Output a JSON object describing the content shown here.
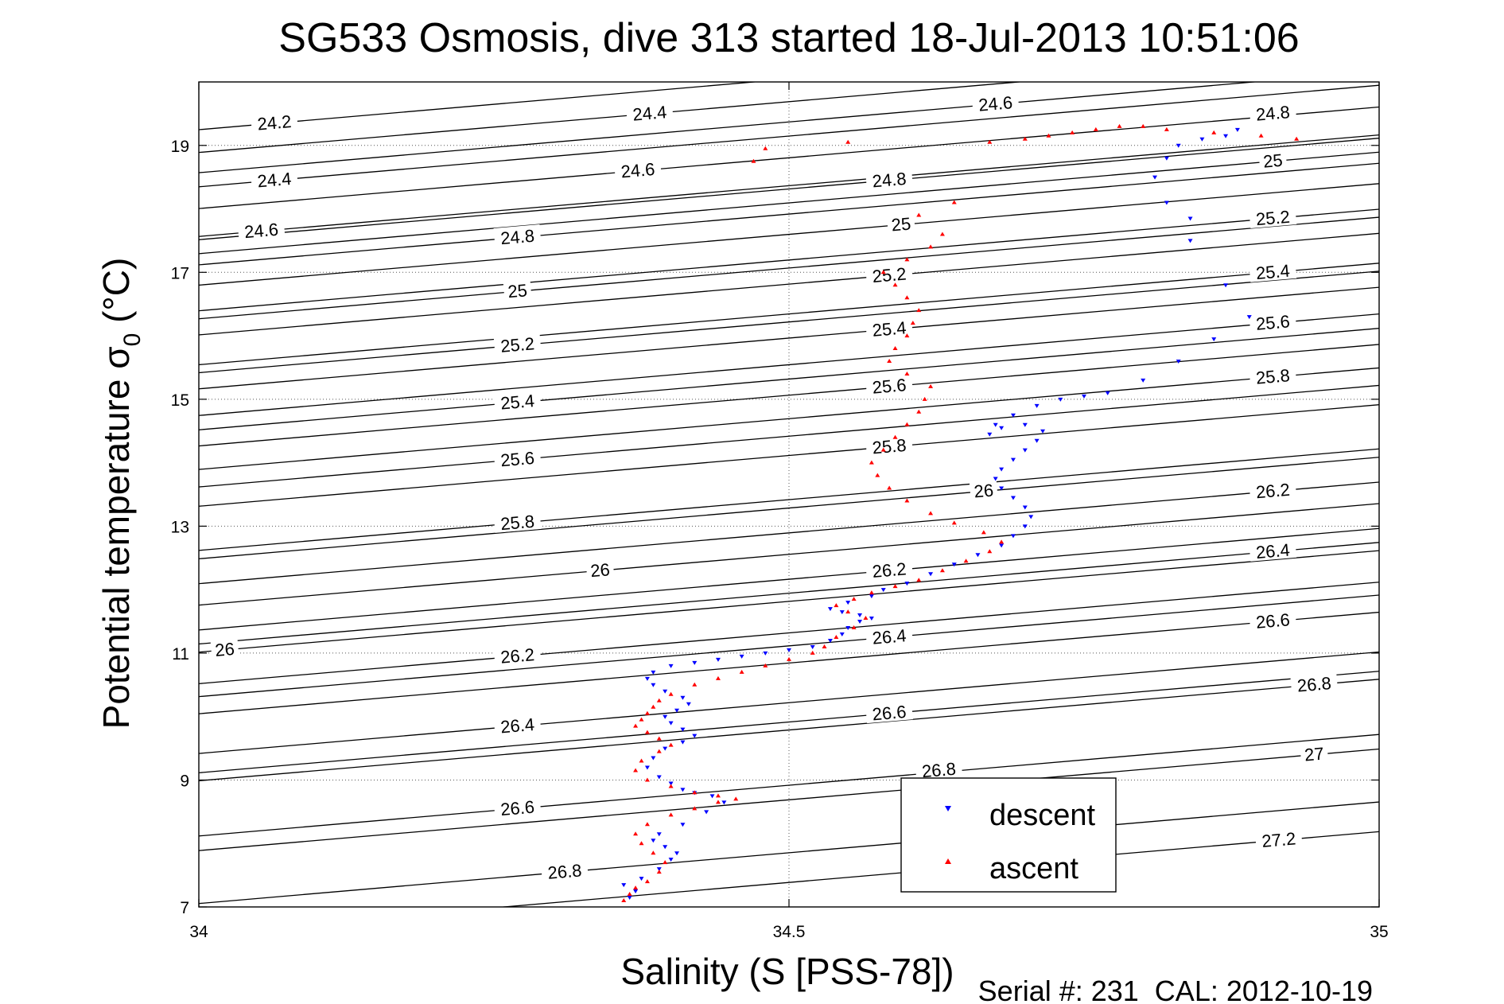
{
  "chart_data": {
    "type": "scatter",
    "title": "SG533 Osmosis, dive 313 started 18-Jul-2013 10:51:06",
    "xlabel": "Salinity (S [PSS-78])",
    "ylabel": "Potential temperature σ₀ (°C)",
    "xlim": [
      34,
      35
    ],
    "ylim": [
      7,
      20
    ],
    "xticks": [
      34,
      34.5,
      35
    ],
    "xtick_labels": [
      "34",
      "34.5",
      "35"
    ],
    "yticks": [
      7,
      9,
      11,
      13,
      15,
      17,
      19
    ],
    "ytick_labels": [
      "7",
      "9",
      "11",
      "13",
      "15",
      "17",
      "19"
    ],
    "grid": true,
    "legend_position": "lower-right",
    "footer": "Serial #: 231  CAL: 2012-10-19",
    "colors": {
      "descent": "#0000ff",
      "ascent": "#ff0000",
      "contour": "#000000"
    },
    "density_contours": {
      "levels": [
        24.2,
        24.4,
        24.6,
        24.8,
        25,
        25.2,
        25.4,
        25.6,
        25.8,
        26,
        26.2,
        26.4,
        26.6,
        26.8,
        27,
        27.2
      ],
      "labels": [
        {
          "text": "24.2",
          "s": 34.064,
          "t": 19.35
        },
        {
          "text": "24.4",
          "s": 34.064,
          "t": 18.45
        },
        {
          "text": "24.6",
          "s": 34.053,
          "t": 17.65
        },
        {
          "text": "24.4",
          "s": 34.382,
          "t": 19.5
        },
        {
          "text": "24.6",
          "s": 34.372,
          "t": 18.6
        },
        {
          "text": "24.8",
          "s": 34.27,
          "t": 17.55
        },
        {
          "text": "25",
          "s": 34.27,
          "t": 16.7
        },
        {
          "text": "25.2",
          "s": 34.27,
          "t": 15.85
        },
        {
          "text": "25.4",
          "s": 34.27,
          "t": 14.95
        },
        {
          "text": "25.6",
          "s": 34.27,
          "t": 14.05
        },
        {
          "text": "25.8",
          "s": 34.27,
          "t": 13.05
        },
        {
          "text": "26",
          "s": 34.34,
          "t": 12.3
        },
        {
          "text": "26",
          "s": 34.022,
          "t": 11.05
        },
        {
          "text": "26.2",
          "s": 34.27,
          "t": 10.95
        },
        {
          "text": "26.4",
          "s": 34.27,
          "t": 9.85
        },
        {
          "text": "26.6",
          "s": 34.27,
          "t": 8.55
        },
        {
          "text": "26.8",
          "s": 34.31,
          "t": 7.55
        },
        {
          "text": "24.6",
          "s": 34.675,
          "t": 19.65
        },
        {
          "text": "24.8",
          "s": 34.585,
          "t": 18.45
        },
        {
          "text": "25",
          "s": 34.595,
          "t": 17.75
        },
        {
          "text": "25.2",
          "s": 34.585,
          "t": 16.95
        },
        {
          "text": "25.4",
          "s": 34.585,
          "t": 16.1
        },
        {
          "text": "25.6",
          "s": 34.585,
          "t": 15.2
        },
        {
          "text": "25.8",
          "s": 34.585,
          "t": 14.25
        },
        {
          "text": "26",
          "s": 34.665,
          "t": 13.55
        },
        {
          "text": "26.2",
          "s": 34.585,
          "t": 12.3
        },
        {
          "text": "26.4",
          "s": 34.585,
          "t": 11.25
        },
        {
          "text": "26.6",
          "s": 34.585,
          "t": 10.05
        },
        {
          "text": "26.8",
          "s": 34.627,
          "t": 9.15
        },
        {
          "text": "24.8",
          "s": 34.91,
          "t": 19.5
        },
        {
          "text": "25",
          "s": 34.91,
          "t": 18.75
        },
        {
          "text": "25.2",
          "s": 34.91,
          "t": 17.85
        },
        {
          "text": "25.4",
          "s": 34.91,
          "t": 17.0
        },
        {
          "text": "25.6",
          "s": 34.91,
          "t": 16.2
        },
        {
          "text": "25.8",
          "s": 34.91,
          "t": 15.35
        },
        {
          "text": "26.2",
          "s": 34.91,
          "t": 13.55
        },
        {
          "text": "26.4",
          "s": 34.91,
          "t": 12.6
        },
        {
          "text": "26.6",
          "s": 34.91,
          "t": 11.5
        },
        {
          "text": "26.8",
          "s": 34.945,
          "t": 10.5
        },
        {
          "text": "27",
          "s": 34.945,
          "t": 9.4
        },
        {
          "text": "27.2",
          "s": 34.915,
          "t": 8.05
        }
      ]
    },
    "series": [
      {
        "name": "descent",
        "marker": "down-triangle",
        "color": "#0000ff",
        "x": [
          34.365,
          34.37,
          34.36,
          34.375,
          34.39,
          34.4,
          34.405,
          34.395,
          34.385,
          34.39,
          34.41,
          34.43,
          34.445,
          34.435,
          34.42,
          34.41,
          34.4,
          34.39,
          34.38,
          34.385,
          34.395,
          34.41,
          34.42,
          34.41,
          34.4,
          34.395,
          34.405,
          34.415,
          34.41,
          34.395,
          34.385,
          34.38,
          34.385,
          34.4,
          34.42,
          34.44,
          34.46,
          34.48,
          34.5,
          34.52,
          34.535,
          34.545,
          34.55,
          34.56,
          34.57,
          34.56,
          34.545,
          34.535,
          34.55,
          34.57,
          34.58,
          34.6,
          34.62,
          34.64,
          34.66,
          34.68,
          34.69,
          34.7,
          34.705,
          34.7,
          34.69,
          34.68,
          34.675,
          34.68,
          34.69,
          34.7,
          34.71,
          34.715,
          34.7,
          34.68,
          34.67,
          34.675,
          34.69,
          34.71,
          34.73,
          34.75,
          34.77,
          34.8,
          34.83,
          34.86,
          34.89,
          34.87,
          34.84,
          34.82,
          34.81,
          34.82,
          34.83,
          34.85,
          34.87,
          34.88,
          34.84
        ],
        "y": [
          7.15,
          7.25,
          7.35,
          7.45,
          7.6,
          7.75,
          7.85,
          7.95,
          8.05,
          8.15,
          8.3,
          8.5,
          8.65,
          8.75,
          8.8,
          8.85,
          8.95,
          9.05,
          9.2,
          9.35,
          9.5,
          9.6,
          9.7,
          9.8,
          9.9,
          10.0,
          10.1,
          10.2,
          10.3,
          10.4,
          10.5,
          10.6,
          10.7,
          10.8,
          10.85,
          10.9,
          10.95,
          11.0,
          11.05,
          11.1,
          11.2,
          11.3,
          11.4,
          11.5,
          11.55,
          11.6,
          11.65,
          11.7,
          11.8,
          11.9,
          12.0,
          12.1,
          12.25,
          12.4,
          12.55,
          12.7,
          12.85,
          13.0,
          13.15,
          13.3,
          13.45,
          13.6,
          13.75,
          13.9,
          14.05,
          14.2,
          14.35,
          14.5,
          14.6,
          14.55,
          14.45,
          14.6,
          14.75,
          14.9,
          15.0,
          15.05,
          15.1,
          15.3,
          15.6,
          15.95,
          16.3,
          16.8,
          17.5,
          18.1,
          18.5,
          18.8,
          19.0,
          19.1,
          19.15,
          19.25,
          17.85
        ]
      },
      {
        "name": "ascent",
        "marker": "up-triangle",
        "color": "#ff0000",
        "x": [
          34.36,
          34.365,
          34.37,
          34.38,
          34.39,
          34.395,
          34.385,
          34.375,
          34.37,
          34.38,
          34.4,
          34.42,
          34.44,
          34.455,
          34.44,
          34.42,
          34.4,
          34.38,
          34.37,
          34.375,
          34.39,
          34.4,
          34.39,
          34.38,
          34.37,
          34.375,
          34.38,
          34.385,
          34.39,
          34.4,
          34.42,
          34.44,
          34.46,
          34.48,
          34.5,
          34.52,
          34.53,
          34.54,
          34.555,
          34.565,
          34.55,
          34.54,
          34.555,
          34.57,
          34.59,
          34.61,
          34.63,
          34.65,
          34.67,
          34.68,
          34.665,
          34.64,
          34.62,
          34.6,
          34.585,
          34.575,
          34.57,
          34.58,
          34.59,
          34.6,
          34.61,
          34.615,
          34.62,
          34.6,
          34.585,
          34.59,
          34.6,
          34.605,
          34.61,
          34.6,
          34.59,
          34.58,
          34.6,
          34.62,
          34.63,
          34.61,
          34.64,
          34.67,
          34.7,
          34.72,
          34.74,
          34.76,
          34.78,
          34.8,
          34.82,
          34.86,
          34.9,
          34.93,
          34.55,
          34.48,
          34.47
        ],
        "y": [
          7.1,
          7.2,
          7.3,
          7.4,
          7.55,
          7.7,
          7.85,
          8.0,
          8.15,
          8.3,
          8.45,
          8.55,
          8.65,
          8.7,
          8.75,
          8.8,
          8.9,
          9.0,
          9.15,
          9.3,
          9.45,
          9.55,
          9.65,
          9.75,
          9.85,
          9.95,
          10.05,
          10.15,
          10.25,
          10.35,
          10.5,
          10.6,
          10.7,
          10.8,
          10.9,
          11.0,
          11.1,
          11.25,
          11.4,
          11.55,
          11.65,
          11.75,
          11.85,
          11.95,
          12.05,
          12.15,
          12.3,
          12.45,
          12.6,
          12.75,
          12.9,
          13.05,
          13.2,
          13.4,
          13.6,
          13.8,
          14.0,
          14.2,
          14.4,
          14.6,
          14.8,
          15.0,
          15.2,
          15.4,
          15.6,
          15.8,
          16.0,
          16.2,
          16.4,
          16.6,
          16.8,
          17.0,
          17.2,
          17.4,
          17.6,
          17.9,
          18.1,
          19.05,
          19.1,
          19.15,
          19.2,
          19.25,
          19.3,
          19.3,
          19.25,
          19.2,
          19.15,
          19.1,
          19.05,
          18.95,
          18.75
        ]
      }
    ]
  }
}
